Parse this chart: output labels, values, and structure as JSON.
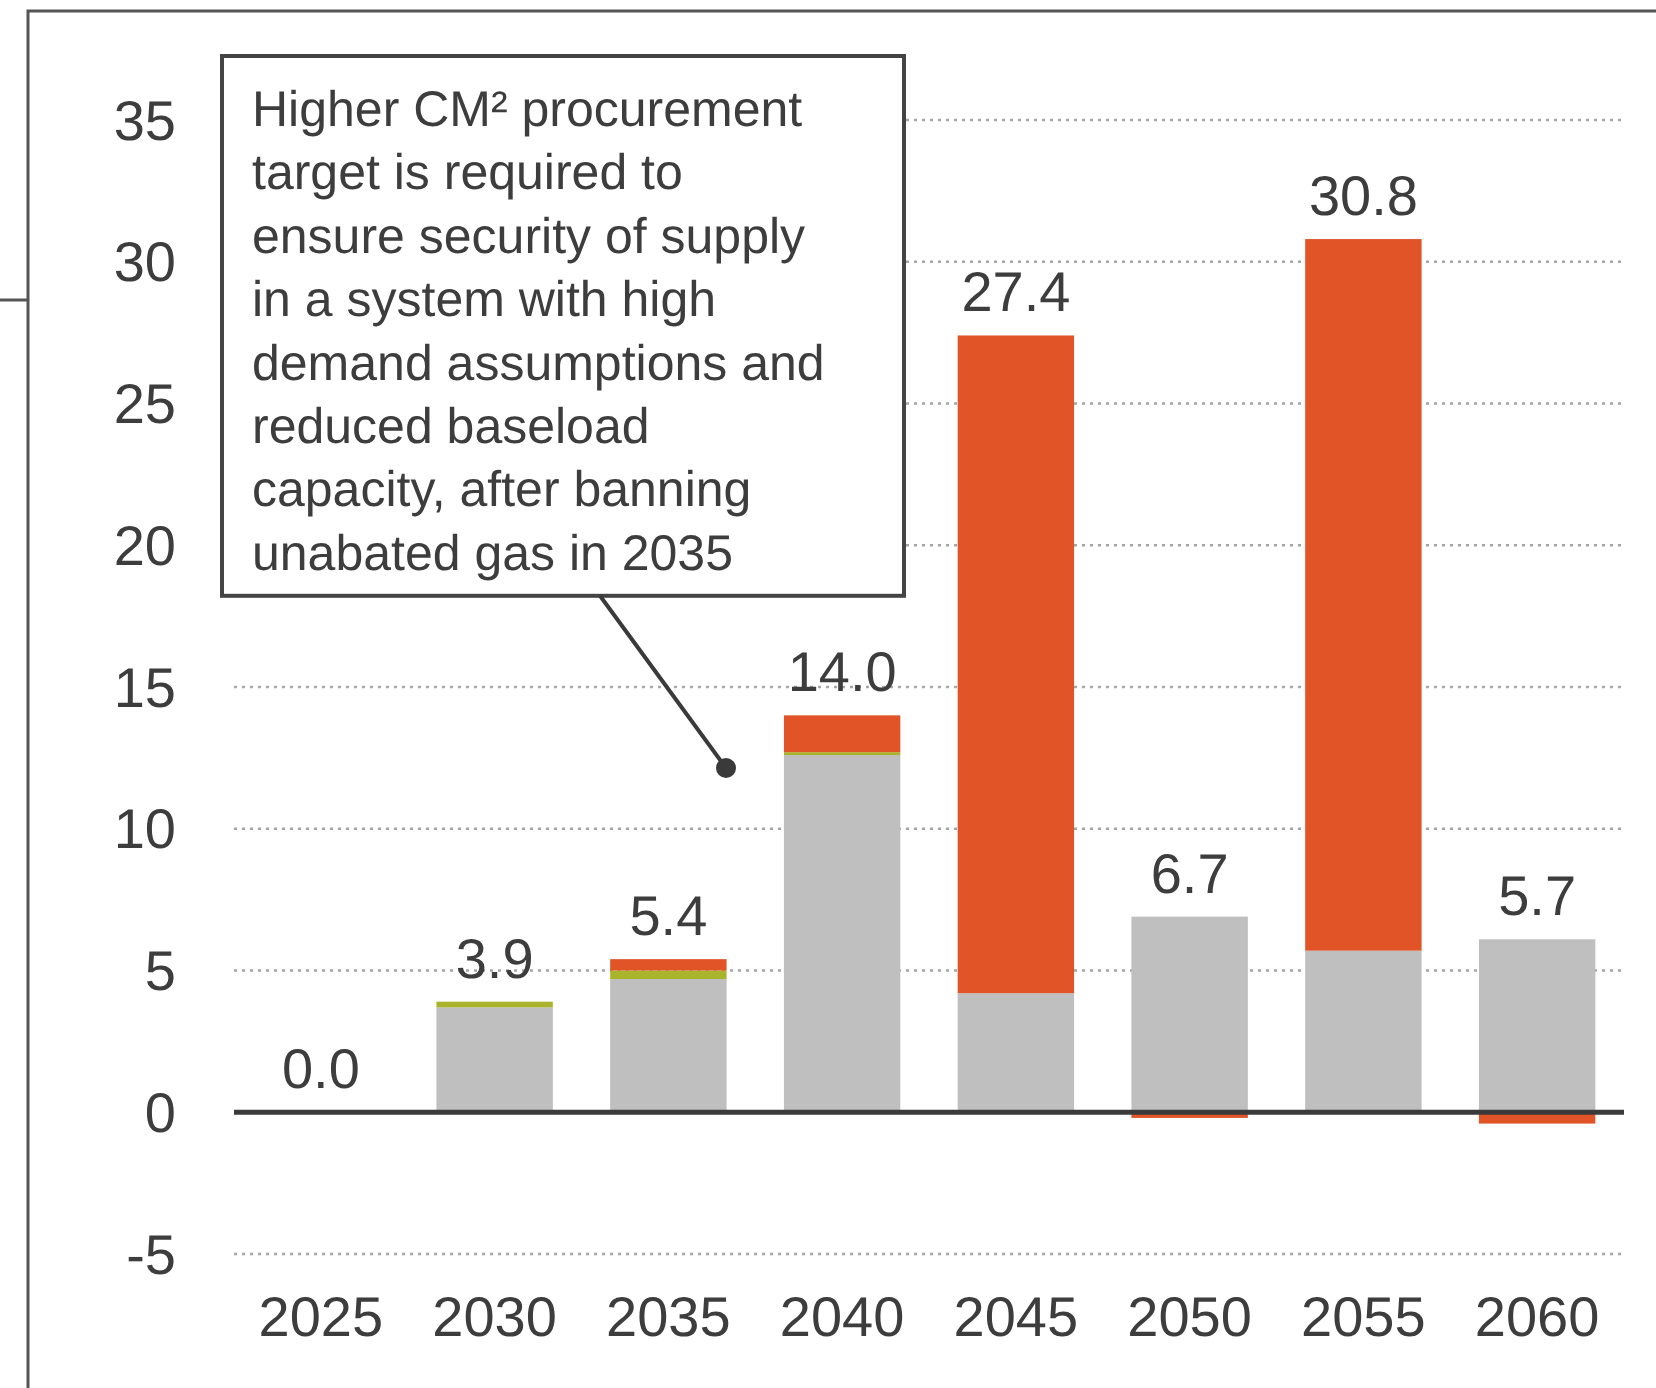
{
  "chart_data": {
    "type": "bar",
    "stacked": true,
    "categories": [
      "2025",
      "2030",
      "2035",
      "2040",
      "2045",
      "2050",
      "2055",
      "2060"
    ],
    "series": [
      {
        "color": "#bfbfbf",
        "values": [
          0,
          3.7,
          4.7,
          12.6,
          4.2,
          6.9,
          5.7,
          6.1
        ]
      },
      {
        "color": "#a9b42c",
        "values": [
          null,
          0.2,
          0.3,
          0.1,
          null,
          null,
          null,
          null
        ]
      },
      {
        "color": "#e05427",
        "values": [
          null,
          null,
          0.4,
          1.3,
          23.2,
          -0.2,
          25.1,
          -0.4
        ]
      }
    ],
    "ylim": [
      -5,
      35
    ],
    "yticks": [
      -5,
      0,
      5,
      10,
      15,
      20,
      25,
      30,
      35
    ],
    "grid": "y",
    "totals": [
      "0.0",
      "3.9",
      "5.4",
      "14.0",
      "27.4",
      "6.7",
      "30.8",
      "5.7"
    ],
    "annotations": [
      "Higher CM² procurement target is required to ensure security of supply in a system with high demand assumptions and reduced baseload capacity, after banning unabated gas in 2035"
    ]
  }
}
